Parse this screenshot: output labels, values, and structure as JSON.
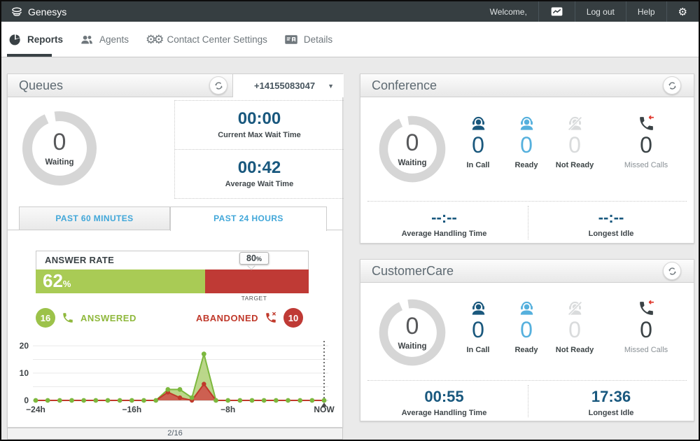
{
  "navbar": {
    "brand": "Genesys",
    "welcome": "Welcome,",
    "logout": "Log out",
    "help": "Help",
    "gear_glyph": "⚙"
  },
  "tabs": [
    {
      "label": "Reports",
      "active": true
    },
    {
      "label": "Agents",
      "active": false
    },
    {
      "label": "Contact Center Settings",
      "active": false
    },
    {
      "label": "Details",
      "active": false
    }
  ],
  "icons": {
    "caret_down": "▼",
    "gears_glyph": "⚙⚙"
  },
  "queues": {
    "title": "Queues",
    "phone": "+14155083047",
    "waiting": {
      "value": "0",
      "label": "Waiting"
    },
    "stats": [
      {
        "value": "00:00",
        "label": "Current Max Wait Time"
      },
      {
        "value": "00:42",
        "label": "Average Wait Time"
      }
    ],
    "range_tabs": [
      {
        "label": "PAST 60 MINUTES",
        "active": false
      },
      {
        "label": "PAST 24 HOURS",
        "active": true
      }
    ],
    "answer_rate": {
      "header": "ANSWER RATE",
      "value": 62,
      "value_label": "62",
      "unit": "%",
      "target": 80,
      "target_label": "80",
      "target_caption": "TARGET"
    },
    "answered": {
      "count": "16",
      "label": "ANSWERED",
      "color": "#9cc24a"
    },
    "abandoned": {
      "count": "10",
      "label": "ABANDONED",
      "color": "#bf3a35"
    },
    "pagination": "2/16"
  },
  "chart_data": {
    "type": "area",
    "title": "Answered vs Abandoned calls, past 24 hours",
    "x_hours": [
      -24,
      -23,
      -22,
      -21,
      -20,
      -19,
      -18,
      -17,
      -16,
      -15,
      -14,
      -13,
      -12,
      -11,
      -10,
      -9,
      -8,
      -7,
      -6,
      -5,
      -4,
      -3,
      -2,
      -1,
      0
    ],
    "series": [
      {
        "name": "Answered",
        "color": "#7cb83e",
        "fill": "#b7d584",
        "values": [
          0,
          0,
          0,
          0,
          0,
          0,
          0,
          0,
          0,
          0,
          0,
          4,
          4,
          1,
          17,
          0,
          0,
          0,
          0,
          0,
          0,
          0,
          0,
          0,
          0
        ]
      },
      {
        "name": "Abandoned",
        "color": "#c0392b",
        "fill": "#cd5a4e",
        "values": [
          0,
          0,
          0,
          0,
          0,
          0,
          0,
          0,
          0,
          0,
          0,
          3,
          1,
          0,
          6,
          0,
          0,
          0,
          0,
          0,
          0,
          0,
          0,
          0,
          0
        ]
      }
    ],
    "ylim": [
      0,
      20
    ],
    "y_ticks": [
      0,
      10,
      20
    ],
    "grid_step": 5,
    "grid": true,
    "legend_position": "none",
    "x_tick_labels": [
      {
        "hour": -24,
        "label": "−24h"
      },
      {
        "hour": -16,
        "label": "−16h"
      },
      {
        "hour": -8,
        "label": "−8h"
      },
      {
        "hour": 0,
        "label": "NOW"
      }
    ],
    "now_marker": true
  },
  "conference": {
    "title": "Conference",
    "waiting": {
      "value": "0",
      "label": "Waiting"
    },
    "agents": [
      {
        "value": "0",
        "label": "In Call"
      },
      {
        "value": "0",
        "label": "Ready"
      },
      {
        "value": "0",
        "label": "Not Ready"
      },
      {
        "value": "0",
        "label": "Missed Calls"
      }
    ],
    "bottom": [
      {
        "value": "--:--",
        "label": "Average Handling Time"
      },
      {
        "value": "--:--",
        "label": "Longest Idle"
      }
    ]
  },
  "customercare": {
    "title": "CustomerCare",
    "waiting": {
      "value": "0",
      "label": "Waiting"
    },
    "agents": [
      {
        "value": "0",
        "label": "In Call"
      },
      {
        "value": "0",
        "label": "Ready"
      },
      {
        "value": "0",
        "label": "Not Ready"
      },
      {
        "value": "0",
        "label": "Missed Calls"
      }
    ],
    "bottom": [
      {
        "value": "00:55",
        "label": "Average Handling Time"
      },
      {
        "value": "17:36",
        "label": "Longest Idle"
      }
    ]
  }
}
